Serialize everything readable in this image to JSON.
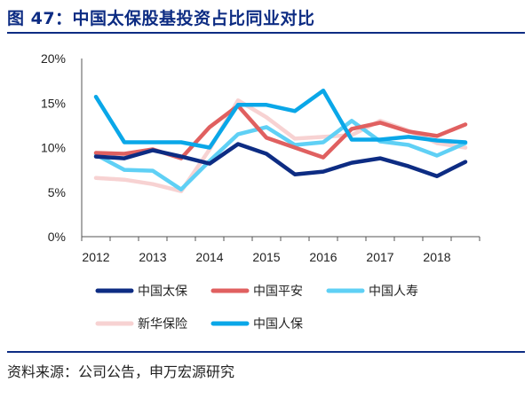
{
  "header": {
    "title": "图 47：中国太保股基投资占比同业对比"
  },
  "footer": {
    "source": "资料来源：公司公告，申万宏源研究"
  },
  "chart_data": {
    "type": "line",
    "title": "",
    "xlabel": "",
    "ylabel": "",
    "x_ticks": [
      "2012",
      "2013",
      "2014",
      "2015",
      "2016",
      "2017",
      "2018"
    ],
    "x": [
      "2012H1",
      "2012H2",
      "2013H1",
      "2013H2",
      "2014H1",
      "2014H2",
      "2015H1",
      "2015H2",
      "2016H1",
      "2016H2",
      "2017H1",
      "2017H2",
      "2018H1",
      "2018H2"
    ],
    "y_ticks": [
      "0%",
      "5%",
      "10%",
      "15%",
      "20%"
    ],
    "ylim": [
      0,
      20
    ],
    "grid": false,
    "legend_position": "bottom",
    "series": [
      {
        "name": "中国太保",
        "color": "#0d2c83",
        "values": [
          9.0,
          8.8,
          9.7,
          9.0,
          8.2,
          10.4,
          9.3,
          7.0,
          7.3,
          8.3,
          8.8,
          7.9,
          6.8,
          8.4
        ]
      },
      {
        "name": "中国平安",
        "color": "#e06060",
        "values": [
          9.4,
          9.3,
          9.8,
          8.8,
          12.3,
          14.7,
          11.1,
          10.0,
          8.9,
          12.1,
          12.8,
          11.8,
          11.3,
          12.6
        ]
      },
      {
        "name": "中国人寿",
        "color": "#5fd0f5",
        "values": [
          9.2,
          7.5,
          7.4,
          5.3,
          8.5,
          11.5,
          12.3,
          10.3,
          10.6,
          13.0,
          10.7,
          10.3,
          9.1,
          10.5
        ]
      },
      {
        "name": "新华保险",
        "color": "#f7d2d2",
        "values": [
          6.6,
          6.4,
          5.9,
          5.1,
          9.8,
          15.3,
          13.4,
          11.0,
          11.2,
          11.4,
          13.0,
          11.9,
          10.5,
          10.0
        ]
      },
      {
        "name": "中国人保",
        "color": "#0aa7e8",
        "values": [
          15.7,
          10.6,
          10.6,
          10.6,
          10.0,
          14.8,
          14.8,
          14.1,
          16.4,
          10.9,
          10.9,
          11.2,
          10.8,
          10.6
        ]
      }
    ]
  }
}
